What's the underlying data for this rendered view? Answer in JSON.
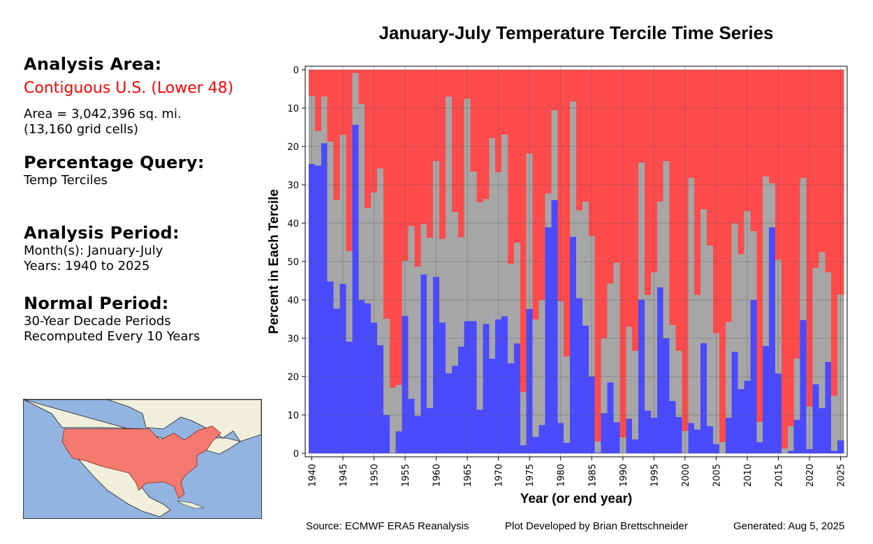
{
  "left_panel": {
    "analysis_area_heading": "Analysis Area:",
    "analysis_area_name": "Contiguous U.S. (Lower 48)",
    "area_line": "Area = 3,042,396 sq. mi.",
    "grid_cells_line": "(13,160 grid cells)",
    "query_heading": "Percentage Query:",
    "query_value": "Temp Terciles",
    "period_heading": "Analysis Period:",
    "months_line": "Month(s): January-July",
    "years_line": "Years: 1940 to 2025",
    "normal_heading": "Normal Period:",
    "normal_line1": "30-Year Decade Periods",
    "normal_line2": "Recomputed Every 10 Years",
    "map_label": "Contiguous U.S. highlighted map"
  },
  "footer": {
    "source": "Source: ECMWF ERA5 Reanalysis",
    "developer": "Plot Developed by Brian Brettschneider",
    "generated": "Generated: Aug 5, 2025"
  },
  "colors": {
    "above": "#ff4b4b",
    "near": "#a6a6a6",
    "below": "#4a4aff",
    "map_highlight": "#f47a70",
    "map_water": "#92b4e0",
    "map_land": "#f0efdc"
  },
  "chart_data": {
    "type": "bar",
    "stacked": true,
    "title": "January-July Temperature Tercile Time Series",
    "xlabel": "Year (or end year)",
    "ylabel": "Percent in Each Tercile",
    "ylim": [
      0,
      100
    ],
    "y_tick_labels": [
      "0",
      "10",
      "20",
      "30",
      "40",
      "50",
      "40",
      "30",
      "20",
      "10",
      "0"
    ],
    "x_tick_labels": [
      "1940",
      "1945",
      "1950",
      "1955",
      "1960",
      "1965",
      "1970",
      "1975",
      "1980",
      "1985",
      "1990",
      "1995",
      "2000",
      "2005",
      "2010",
      "2015",
      "2020",
      "2025"
    ],
    "grid": true,
    "x": [
      1940,
      1941,
      1942,
      1943,
      1944,
      1945,
      1946,
      1947,
      1948,
      1949,
      1950,
      1951,
      1952,
      1953,
      1954,
      1955,
      1956,
      1957,
      1958,
      1959,
      1960,
      1961,
      1962,
      1963,
      1964,
      1965,
      1966,
      1967,
      1968,
      1969,
      1970,
      1971,
      1972,
      1973,
      1974,
      1975,
      1976,
      1977,
      1978,
      1979,
      1980,
      1981,
      1982,
      1983,
      1984,
      1985,
      1986,
      1987,
      1988,
      1989,
      1990,
      1991,
      1992,
      1993,
      1994,
      1995,
      1996,
      1997,
      1998,
      1999,
      2000,
      2001,
      2002,
      2003,
      2004,
      2005,
      2006,
      2007,
      2008,
      2009,
      2010,
      2011,
      2012,
      2013,
      2014,
      2015,
      2016,
      2017,
      2018,
      2019,
      2020,
      2021,
      2022,
      2023,
      2024,
      2025
    ],
    "series": [
      {
        "name": "Below Normal",
        "stack_from": "bottom",
        "values": [
          75.5,
          75.0,
          80.8,
          44.8,
          37.7,
          44.2,
          29.1,
          85.6,
          40.0,
          39.1,
          34.1,
          28.2,
          10.0,
          0.1,
          5.7,
          35.8,
          14.2,
          9.7,
          46.6,
          11.8,
          46.0,
          34.1,
          20.8,
          22.8,
          27.8,
          34.5,
          34.5,
          11.4,
          33.7,
          24.6,
          34.9,
          35.7,
          23.5,
          28.6,
          2.1,
          37.6,
          4.3,
          7.4,
          58.9,
          66.0,
          7.9,
          2.7,
          56.5,
          40.5,
          33.3,
          20.0,
          0.2,
          10.5,
          18.5,
          8.1,
          0.0,
          9.0,
          3.6,
          40.1,
          11.1,
          9.3,
          43.3,
          30.0,
          13.6,
          9.5,
          0.0,
          7.9,
          6.2,
          28.7,
          7.1,
          2.4,
          0.0,
          9.3,
          26.5,
          16.7,
          18.9,
          40.0,
          2.9,
          28.0,
          58.9,
          20.8,
          0.0,
          0.6,
          8.7,
          34.7,
          1.1,
          18.0,
          11.8,
          23.8,
          0.6,
          3.4
        ]
      },
      {
        "name": "Near Normal",
        "stack_from": "middle",
        "values": [
          17.7,
          9.0,
          12.2,
          36.5,
          28.3,
          38.8,
          23.6,
          13.6,
          51.1,
          24.9,
          33.9,
          46.1,
          25.1,
          17.0,
          12.1,
          14.4,
          45.1,
          39.0,
          13.1,
          44.4,
          30.2,
          21.8,
          72.2,
          40.1,
          28.5,
          58.0,
          39.0,
          54.1,
          32.6,
          57.6,
          38.4,
          47.4,
          26.0,
          26.3,
          13.9,
          40.6,
          30.6,
          32.5,
          8.8,
          23.5,
          31.7,
          22.6,
          35.2,
          22.9,
          32.3,
          36.7,
          2.9,
          19.5,
          25.8,
          41.6,
          4.2,
          24.0,
          23.1,
          35.7,
          30.2,
          37.9,
          22.3,
          46.2,
          19.9,
          17.2,
          5.8,
          63.9,
          35.1,
          34.9,
          47.1,
          29.0,
          2.9,
          25.0,
          33.4,
          35.2,
          44.3,
          17.9,
          5.3,
          44.2,
          11.5,
          29.7,
          1.3,
          6.5,
          16.0,
          37.1,
          11.1,
          30.4,
          40.7,
          23.4,
          14.4,
          38.0
        ]
      },
      {
        "name": "Above Normal",
        "stack_from": "top",
        "values": [
          6.8,
          16.0,
          7.0,
          18.7,
          34.0,
          17.0,
          47.3,
          0.8,
          8.9,
          36.0,
          32.0,
          25.7,
          64.9,
          82.9,
          82.2,
          49.8,
          40.7,
          51.3,
          40.3,
          43.8,
          23.8,
          44.1,
          7.0,
          37.1,
          43.7,
          7.5,
          26.5,
          34.5,
          33.7,
          17.8,
          26.7,
          16.9,
          50.5,
          45.1,
          84.0,
          21.8,
          65.1,
          60.1,
          32.3,
          10.5,
          60.4,
          74.7,
          8.3,
          36.6,
          34.4,
          43.3,
          96.9,
          70.0,
          55.7,
          50.3,
          95.8,
          67.0,
          73.3,
          24.2,
          58.7,
          52.8,
          34.4,
          23.8,
          66.5,
          73.3,
          94.2,
          28.2,
          58.7,
          36.4,
          45.8,
          68.6,
          97.1,
          65.7,
          40.1,
          48.1,
          36.8,
          42.1,
          91.8,
          27.8,
          29.6,
          49.5,
          98.7,
          92.9,
          75.3,
          28.2,
          87.8,
          51.6,
          47.5,
          52.8,
          85.0,
          58.6
        ]
      }
    ]
  }
}
